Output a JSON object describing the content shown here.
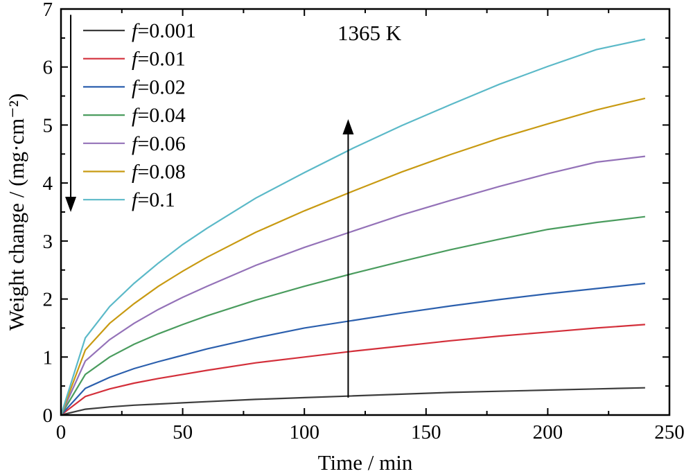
{
  "chart_data": {
    "type": "line",
    "title": "",
    "xlabel": "Time / min",
    "ylabel": "Weight change / (mg·cm⁻²)",
    "xlim": [
      0,
      250
    ],
    "ylim": [
      0,
      7
    ],
    "x_ticks": [
      0,
      50,
      100,
      150,
      200,
      250
    ],
    "y_ticks": [
      0,
      1,
      2,
      3,
      4,
      5,
      6,
      7
    ],
    "grid": false,
    "legend_position": "top-left",
    "annotation": "1365 K",
    "arrows": [
      {
        "description": "upward arrow indicating increasing f",
        "x": 118,
        "y_from": 0.3,
        "y_to": 5.1
      },
      {
        "description": "downward arrow beside legend",
        "x": 4,
        "y_from": 6.9,
        "y_to": 3.5
      }
    ],
    "x": [
      0,
      10,
      20,
      30,
      40,
      50,
      60,
      80,
      100,
      120,
      140,
      160,
      180,
      200,
      220,
      240
    ],
    "series": [
      {
        "name": "f=0.001",
        "label_prefix": "f",
        "label_value": "=0.001",
        "color": "#3c3c3c",
        "values": [
          0,
          0.1,
          0.14,
          0.17,
          0.19,
          0.21,
          0.23,
          0.27,
          0.3,
          0.33,
          0.36,
          0.39,
          0.41,
          0.43,
          0.45,
          0.47
        ]
      },
      {
        "name": "f=0.01",
        "label_prefix": "f",
        "label_value": "=0.01",
        "color": "#d32f3a",
        "values": [
          0,
          0.32,
          0.45,
          0.55,
          0.63,
          0.7,
          0.77,
          0.9,
          1.0,
          1.1,
          1.19,
          1.28,
          1.36,
          1.43,
          1.5,
          1.56
        ]
      },
      {
        "name": "f=0.02",
        "label_prefix": "f",
        "label_value": "=0.02",
        "color": "#2b5fad",
        "values": [
          0,
          0.46,
          0.65,
          0.8,
          0.92,
          1.03,
          1.14,
          1.33,
          1.5,
          1.63,
          1.76,
          1.88,
          1.99,
          2.09,
          2.18,
          2.27
        ]
      },
      {
        "name": "f=0.04",
        "label_prefix": "f",
        "label_value": "=0.04",
        "color": "#4a9c5e",
        "values": [
          0,
          0.7,
          1.0,
          1.22,
          1.4,
          1.56,
          1.71,
          1.98,
          2.22,
          2.44,
          2.65,
          2.85,
          3.03,
          3.2,
          3.32,
          3.42
        ]
      },
      {
        "name": "f=0.06",
        "label_prefix": "f",
        "label_value": "=0.06",
        "color": "#9472b8",
        "values": [
          0,
          0.93,
          1.3,
          1.58,
          1.82,
          2.03,
          2.22,
          2.58,
          2.89,
          3.17,
          3.45,
          3.7,
          3.94,
          4.16,
          4.36,
          4.46
        ]
      },
      {
        "name": "f=0.08",
        "label_prefix": "f",
        "label_value": "=0.08",
        "color": "#c89a12",
        "values": [
          0,
          1.12,
          1.58,
          1.92,
          2.22,
          2.48,
          2.72,
          3.15,
          3.52,
          3.86,
          4.19,
          4.49,
          4.77,
          5.02,
          5.26,
          5.46
        ]
      },
      {
        "name": "f=0.1",
        "label_prefix": "f",
        "label_value": "=0.1",
        "color": "#5bb9c8",
        "values": [
          0,
          1.33,
          1.87,
          2.27,
          2.62,
          2.94,
          3.22,
          3.74,
          4.18,
          4.6,
          4.99,
          5.35,
          5.7,
          6.01,
          6.3,
          6.48
        ]
      }
    ]
  }
}
